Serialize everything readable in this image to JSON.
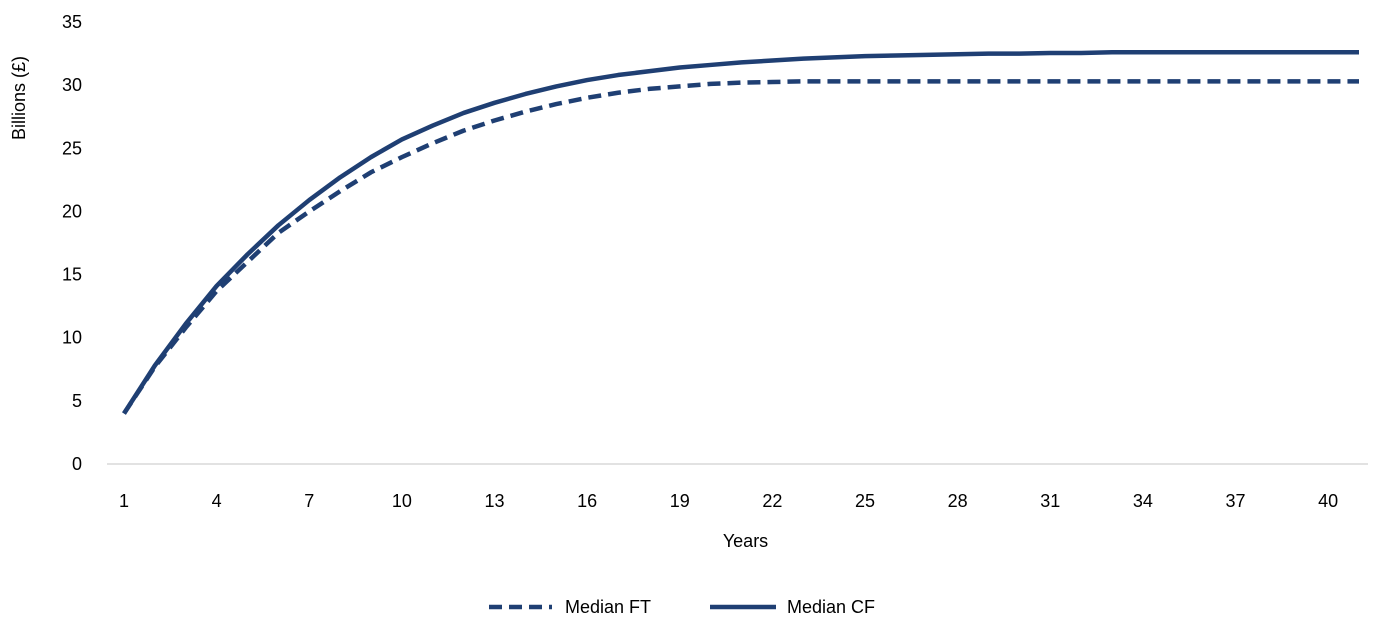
{
  "chart_data": {
    "type": "line",
    "title": "",
    "xlabel": "Years",
    "ylabel": "Billions (£)",
    "xlim": [
      1,
      41
    ],
    "ylim": [
      0,
      35
    ],
    "x_ticks": [
      "1",
      "4",
      "7",
      "10",
      "13",
      "16",
      "19",
      "22",
      "25",
      "28",
      "31",
      "34",
      "37",
      "40"
    ],
    "y_ticks": [
      "0",
      "5",
      "10",
      "15",
      "20",
      "25",
      "30",
      "35"
    ],
    "grid": false,
    "legend_position": "bottom",
    "x": [
      1,
      2,
      3,
      4,
      5,
      6,
      7,
      8,
      9,
      10,
      11,
      12,
      13,
      14,
      15,
      16,
      17,
      18,
      19,
      20,
      21,
      22,
      23,
      24,
      25,
      26,
      27,
      28,
      29,
      30,
      31,
      32,
      33,
      34,
      35,
      36,
      37,
      38,
      39,
      40,
      41
    ],
    "series": [
      {
        "name": "Median FT",
        "style": "dashed",
        "color": "#1F3F73",
        "values": [
          4.0,
          7.7,
          10.8,
          13.7,
          16.0,
          18.3,
          20.0,
          21.6,
          23.1,
          24.3,
          25.4,
          26.4,
          27.2,
          27.9,
          28.5,
          29.0,
          29.4,
          29.7,
          29.9,
          30.1,
          30.2,
          30.25,
          30.3,
          30.3,
          30.3,
          30.3,
          30.3,
          30.3,
          30.3,
          30.3,
          30.3,
          30.3,
          30.3,
          30.3,
          30.3,
          30.3,
          30.3,
          30.3,
          30.3,
          30.3,
          30.3
        ]
      },
      {
        "name": "Median CF",
        "style": "solid",
        "color": "#1F3F73",
        "values": [
          4.0,
          7.8,
          11.1,
          14.1,
          16.6,
          18.9,
          20.9,
          22.7,
          24.3,
          25.7,
          26.8,
          27.8,
          28.6,
          29.3,
          29.9,
          30.4,
          30.8,
          31.1,
          31.4,
          31.6,
          31.8,
          31.95,
          32.1,
          32.2,
          32.3,
          32.35,
          32.4,
          32.45,
          32.5,
          32.5,
          32.55,
          32.55,
          32.6,
          32.6,
          32.6,
          32.6,
          32.6,
          32.6,
          32.6,
          32.6,
          32.6
        ]
      }
    ]
  }
}
